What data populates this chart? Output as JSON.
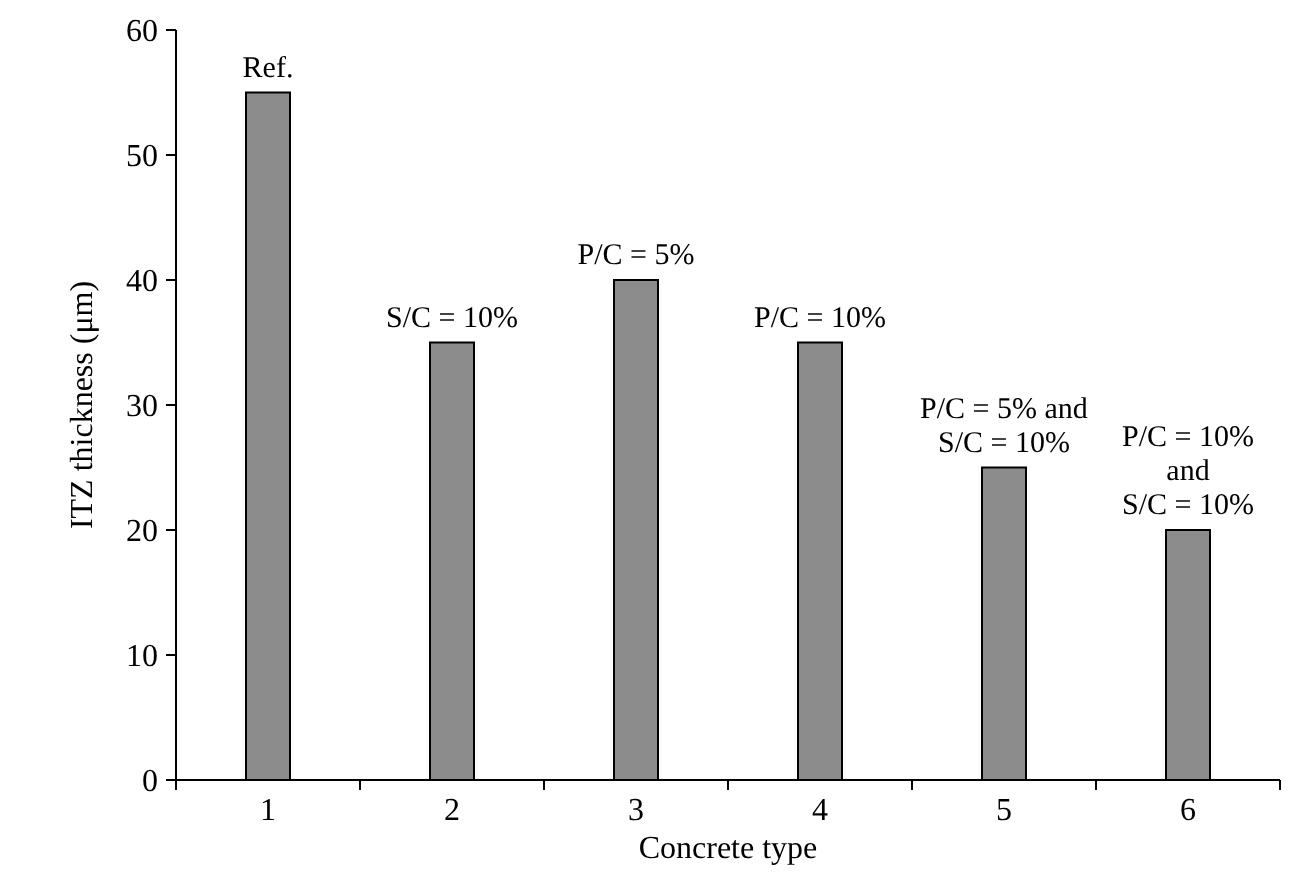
{
  "chart_data": {
    "type": "bar",
    "xlabel": "Concrete type",
    "ylabel": "ITZ thickness (μm)",
    "categories": [
      "1",
      "2",
      "3",
      "4",
      "5",
      "6"
    ],
    "values": [
      55,
      35,
      40,
      35,
      25,
      20
    ],
    "color": "#8c8c8c",
    "ylim": [
      0,
      60
    ],
    "yticks": [
      0,
      10,
      20,
      30,
      40,
      50,
      60
    ],
    "grid": false,
    "annotations": [
      {
        "text": "Ref.",
        "x": "1",
        "y": 55
      },
      {
        "text": "S/C = 10%",
        "x": "2",
        "y": 35
      },
      {
        "text": "P/C = 5%",
        "x": "3",
        "y": 40
      },
      {
        "text": "P/C = 10%",
        "x": "4",
        "y": 35
      },
      {
        "text": "P/C = 5% and\nS/C = 10%",
        "x": "5",
        "y": 25
      },
      {
        "text": "P/C = 10%\nand\nS/C = 10%",
        "x": "6",
        "y": 20
      }
    ]
  }
}
